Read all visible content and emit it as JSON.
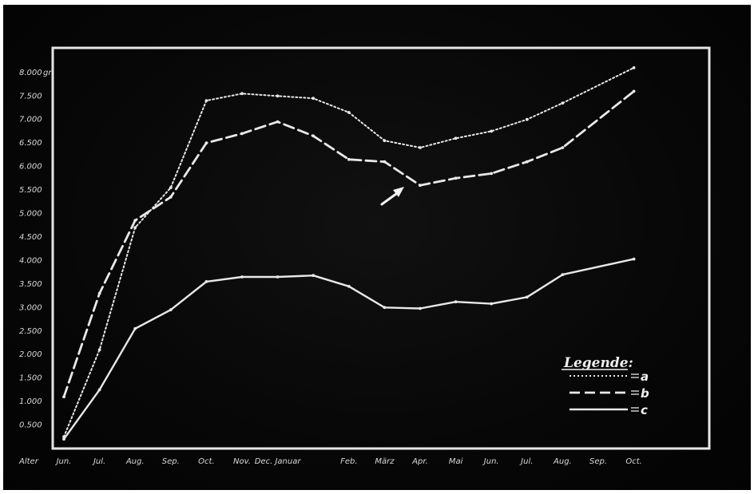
{
  "chart_data": {
    "type": "line",
    "title": "",
    "xlabel": "",
    "ylabel": "",
    "y_unit_label": "gr",
    "ylim": [
      0,
      8000
    ],
    "y_ticks": [
      {
        "value": 500,
        "label": "0.500"
      },
      {
        "value": 1000,
        "label": "1.000"
      },
      {
        "value": 1500,
        "label": "1.500"
      },
      {
        "value": 2000,
        "label": "2.000"
      },
      {
        "value": 2500,
        "label": "2.500"
      },
      {
        "value": 3000,
        "label": "3.000"
      },
      {
        "value": 3500,
        "label": "3.500"
      },
      {
        "value": 4000,
        "label": "4.000"
      },
      {
        "value": 4500,
        "label": "4.500"
      },
      {
        "value": 5000,
        "label": "5.000"
      },
      {
        "value": 5500,
        "label": "5.500"
      },
      {
        "value": 6000,
        "label": "6.000"
      },
      {
        "value": 6500,
        "label": "6.500"
      },
      {
        "value": 7000,
        "label": "7.000"
      },
      {
        "value": 7500,
        "label": "7.500"
      },
      {
        "value": 8000,
        "label": "8.000"
      }
    ],
    "x_axis_start_label": "Alter",
    "categories": [
      "Jun.",
      "Jul.",
      "Aug.",
      "Sep.",
      "Oct.",
      "Nov.",
      "Dec.",
      "Januar",
      "Feb.",
      "März",
      "Apr.",
      "Mai",
      "Jun.",
      "Jul.",
      "Aug.",
      "Sep.",
      "Oct."
    ],
    "x_tick_labels": [
      "Jun.",
      "Jul.",
      "Aug.",
      "Sep.",
      "Oct.",
      "Nov.",
      "Dec. Januar",
      "",
      "Feb.",
      "März",
      "Apr.",
      "Mai",
      "Jun.",
      "Jul.",
      "Aug.",
      "Sep.",
      "Oct."
    ],
    "series": [
      {
        "name": "a",
        "style": "dotted",
        "values": [
          250,
          2100,
          4700,
          5550,
          7400,
          7550,
          7500,
          7450,
          7150,
          6550,
          6400,
          6600,
          6750,
          7000,
          7350,
          null,
          8100
        ]
      },
      {
        "name": "b",
        "style": "dashed",
        "values": [
          1100,
          3300,
          4850,
          5350,
          6500,
          6700,
          6950,
          6650,
          6150,
          6100,
          5600,
          5750,
          5850,
          6100,
          6400,
          null,
          7600
        ]
      },
      {
        "name": "c",
        "style": "solid",
        "values": [
          200,
          1250,
          2550,
          2950,
          3550,
          3650,
          3650,
          3680,
          3450,
          3000,
          2980,
          3120,
          3080,
          3220,
          3700,
          null,
          4030
        ]
      }
    ],
    "legend": {
      "title": "Legende:",
      "placement": "bottom-right",
      "entries": [
        {
          "label": "a",
          "style": "dotted"
        },
        {
          "label": "b",
          "style": "dashed"
        },
        {
          "label": "c",
          "style": "solid"
        }
      ]
    },
    "annotation": {
      "type": "arrow",
      "points_to": {
        "series": "b",
        "category": "Apr."
      }
    },
    "grid": false,
    "colors": {
      "background": "#080808",
      "lines": "#e8e8e8",
      "frame": "#e6e6e6"
    }
  }
}
